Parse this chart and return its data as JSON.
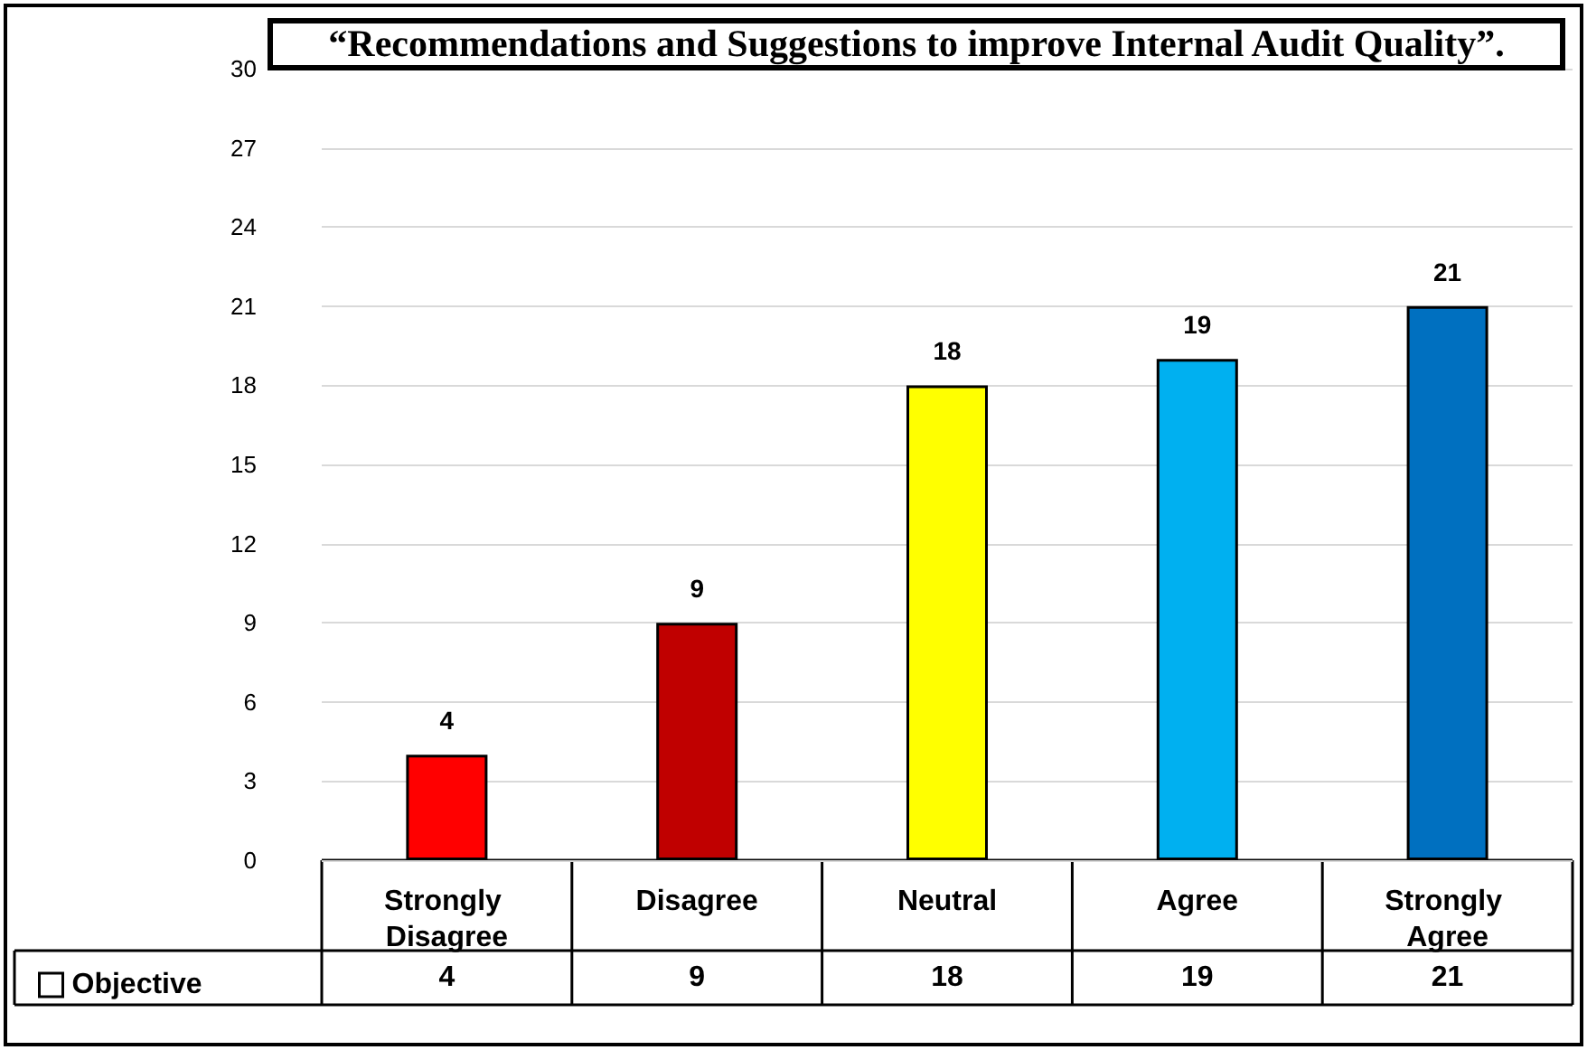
{
  "chart_data": {
    "type": "bar",
    "title": "“Recommendations and Suggestions to improve Internal Audit Quality”.",
    "categories": [
      "Strongly Disagree",
      "Disagree",
      "Neutral",
      "Agree",
      "Strongly Agree"
    ],
    "series": [
      {
        "name": "Objective",
        "values": [
          4,
          9,
          18,
          19,
          21
        ],
        "value_labels": [
          "4",
          "9",
          "18",
          "19",
          "21"
        ],
        "colors": [
          "#ff0000",
          "#c00000",
          "#ffff00",
          "#00b0f0",
          "#0070c0"
        ]
      }
    ],
    "ylim": [
      0,
      30
    ],
    "yticks": [
      0,
      3,
      6,
      9,
      12,
      15,
      18,
      21,
      24,
      27,
      30
    ],
    "grid": "y",
    "legend": "bottom left",
    "data_labels": true
  }
}
